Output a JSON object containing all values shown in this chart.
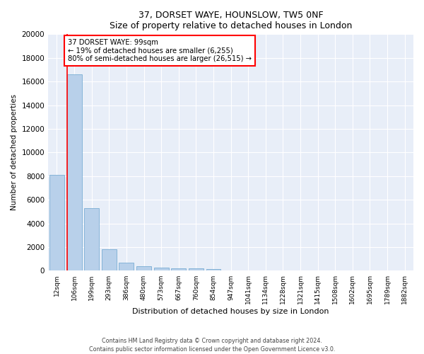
{
  "title": "37, DORSET WAYE, HOUNSLOW, TW5 0NF",
  "subtitle": "Size of property relative to detached houses in London",
  "xlabel": "Distribution of detached houses by size in London",
  "ylabel": "Number of detached properties",
  "categories": [
    "12sqm",
    "106sqm",
    "199sqm",
    "293sqm",
    "386sqm",
    "480sqm",
    "573sqm",
    "667sqm",
    "760sqm",
    "854sqm",
    "947sqm",
    "1041sqm",
    "1134sqm",
    "1228sqm",
    "1321sqm",
    "1415sqm",
    "1508sqm",
    "1602sqm",
    "1695sqm",
    "1789sqm",
    "1882sqm"
  ],
  "values": [
    8100,
    16600,
    5300,
    1850,
    700,
    380,
    290,
    220,
    190,
    160,
    0,
    0,
    0,
    0,
    0,
    0,
    0,
    0,
    0,
    0,
    0
  ],
  "bar_color": "#b8d0ea",
  "bar_edge_color": "#7aadd4",
  "redline_x": 0.5,
  "annotation_title": "37 DORSET WAYE: 99sqm",
  "annotation_line1": "← 19% of detached houses are smaller (6,255)",
  "annotation_line2": "80% of semi-detached houses are larger (26,515) →",
  "annotation_box_facecolor": "#ffffff",
  "annotation_box_edgecolor": "red",
  "ylim": [
    0,
    20000
  ],
  "yticks": [
    0,
    2000,
    4000,
    6000,
    8000,
    10000,
    12000,
    14000,
    16000,
    18000,
    20000
  ],
  "footer_line1": "Contains HM Land Registry data © Crown copyright and database right 2024.",
  "footer_line2": "Contains public sector information licensed under the Open Government Licence v3.0.",
  "bg_color": "#e8eef8",
  "grid_color": "#ffffff",
  "fig_bg_color": "#ffffff"
}
